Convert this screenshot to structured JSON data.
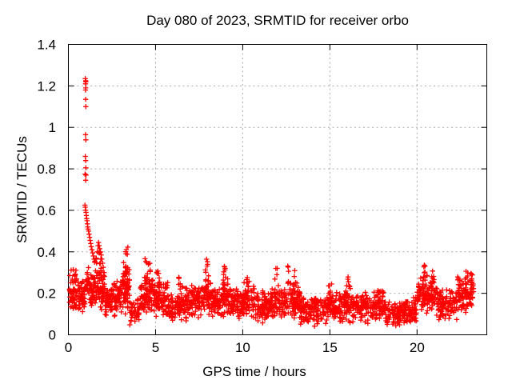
{
  "title": "Day 080 of 2023, SRMTID for receiver orbo",
  "axes": {
    "xlabel": "GPS time / hours",
    "ylabel": "SRMTID / TECUs",
    "xlim": [
      0,
      24
    ],
    "ylim": [
      0,
      1.4
    ],
    "xticks": [
      0,
      5,
      10,
      15,
      20
    ],
    "yticks": [
      0,
      0.2,
      0.4,
      0.6,
      0.8,
      1,
      1.2,
      1.4
    ],
    "grid": true
  },
  "colors": {
    "marker": "#ff0000",
    "grid": "#aaaaaa",
    "axis": "#000000",
    "text": "#000000",
    "background": "#ffffff"
  },
  "chart_data": {
    "type": "scatter",
    "marker": "plus",
    "marker_color": "#ff0000",
    "legend": "none",
    "title": "Day 080 of 2023, SRMTID for receiver orbo",
    "xlabel": "GPS time / hours",
    "ylabel": "SRMTID / TECUs",
    "xlim": [
      0,
      24
    ],
    "ylim": [
      0,
      1.4
    ],
    "xticks": [
      0,
      5,
      10,
      15,
      20
    ],
    "yticks": [
      0,
      0.2,
      0.4,
      0.6,
      0.8,
      1,
      1.2,
      1.4
    ],
    "grid": true,
    "description": "Dense time series of red plus markers, ~30s cadence, hours 0.05-23.25. Baseline band mostly 0.05-0.3 TECUs with a large narrow spike near hour 1 reaching 1.235, a decaying tail to ~0.35 by hour 1.5, and smaller bumps listed in bursts.",
    "seed": 20230080,
    "spike_points": [
      [
        0.97,
        1.235
      ],
      [
        0.99,
        1.225
      ],
      [
        0.98,
        1.21
      ],
      [
        1.0,
        1.22
      ],
      [
        0.99,
        1.19
      ],
      [
        0.98,
        1.18
      ],
      [
        0.99,
        1.135
      ],
      [
        1.0,
        1.1
      ],
      [
        0.98,
        0.965
      ],
      [
        1.0,
        0.94
      ],
      [
        0.97,
        0.86
      ],
      [
        0.99,
        0.84
      ],
      [
        1.0,
        0.805
      ],
      [
        0.96,
        0.775
      ],
      [
        1.01,
        0.77
      ],
      [
        0.99,
        0.745
      ],
      [
        0.95,
        0.625
      ],
      [
        0.97,
        0.615
      ],
      [
        0.99,
        0.6
      ],
      [
        1.01,
        0.59
      ],
      [
        1.03,
        0.575
      ],
      [
        1.05,
        0.56
      ],
      [
        1.07,
        0.55
      ],
      [
        1.09,
        0.535
      ],
      [
        1.11,
        0.52
      ],
      [
        1.13,
        0.51
      ],
      [
        1.16,
        0.5
      ],
      [
        1.19,
        0.485
      ],
      [
        1.22,
        0.47
      ],
      [
        1.25,
        0.455
      ],
      [
        1.28,
        0.44
      ],
      [
        1.31,
        0.425
      ],
      [
        1.35,
        0.41
      ],
      [
        1.39,
        0.395
      ],
      [
        1.43,
        0.38
      ],
      [
        1.47,
        0.365
      ],
      [
        1.51,
        0.35
      ],
      [
        1.6,
        0.37
      ],
      [
        1.65,
        0.4
      ],
      [
        1.7,
        0.43
      ],
      [
        1.73,
        0.445
      ],
      [
        1.76,
        0.43
      ],
      [
        1.8,
        0.415
      ],
      [
        1.84,
        0.4
      ],
      [
        1.88,
        0.385
      ],
      [
        1.92,
        0.365
      ],
      [
        1.96,
        0.345
      ],
      [
        2.0,
        0.325
      ],
      [
        2.05,
        0.3
      ]
    ],
    "baseline_segments_format": "[t_start_h, t_end_h, n_points, y_min, y_max]",
    "baseline_segments": [
      [
        0.05,
        0.5,
        55,
        0.1,
        0.31
      ],
      [
        0.5,
        0.95,
        50,
        0.1,
        0.28
      ],
      [
        0.95,
        1.2,
        25,
        0.13,
        0.33
      ],
      [
        1.2,
        1.6,
        45,
        0.1,
        0.3
      ],
      [
        1.6,
        2.1,
        55,
        0.11,
        0.33
      ],
      [
        2.1,
        2.6,
        50,
        0.08,
        0.24
      ],
      [
        2.6,
        3.1,
        55,
        0.08,
        0.27
      ],
      [
        3.1,
        3.5,
        55,
        0.09,
        0.36
      ],
      [
        3.5,
        4.1,
        42,
        0.04,
        0.18
      ],
      [
        4.1,
        5.0,
        95,
        0.08,
        0.3
      ],
      [
        5.0,
        5.7,
        72,
        0.07,
        0.27
      ],
      [
        5.7,
        6.4,
        65,
        0.05,
        0.21
      ],
      [
        6.4,
        7.2,
        78,
        0.06,
        0.25
      ],
      [
        7.2,
        7.8,
        60,
        0.07,
        0.26
      ],
      [
        7.8,
        8.2,
        42,
        0.08,
        0.3
      ],
      [
        8.2,
        8.8,
        58,
        0.07,
        0.24
      ],
      [
        8.8,
        9.2,
        42,
        0.08,
        0.28
      ],
      [
        9.2,
        10.0,
        80,
        0.06,
        0.24
      ],
      [
        10.0,
        10.7,
        68,
        0.07,
        0.26
      ],
      [
        10.7,
        11.6,
        88,
        0.05,
        0.22
      ],
      [
        11.6,
        12.3,
        68,
        0.06,
        0.26
      ],
      [
        12.3,
        13.3,
        95,
        0.06,
        0.27
      ],
      [
        13.3,
        14.6,
        118,
        0.04,
        0.19
      ],
      [
        14.6,
        15.6,
        92,
        0.05,
        0.21
      ],
      [
        15.6,
        16.6,
        92,
        0.05,
        0.23
      ],
      [
        16.6,
        17.6,
        90,
        0.05,
        0.21
      ],
      [
        17.6,
        18.2,
        56,
        0.05,
        0.22
      ],
      [
        18.2,
        19.3,
        100,
        0.04,
        0.17
      ],
      [
        19.3,
        20.0,
        64,
        0.05,
        0.19
      ],
      [
        20.0,
        21.2,
        112,
        0.08,
        0.3
      ],
      [
        21.2,
        22.3,
        100,
        0.06,
        0.23
      ],
      [
        22.3,
        23.25,
        92,
        0.08,
        0.31
      ]
    ],
    "bursts_format": "[t_center_h, t_halfwidth_h, y_min, y_max, n_points]",
    "bursts": [
      [
        0.3,
        0.15,
        0.22,
        0.32,
        8
      ],
      [
        1.7,
        0.2,
        0.25,
        0.42,
        18
      ],
      [
        3.3,
        0.12,
        0.15,
        0.43,
        22
      ],
      [
        4.55,
        0.18,
        0.18,
        0.37,
        16
      ],
      [
        5.15,
        0.1,
        0.16,
        0.31,
        10
      ],
      [
        6.35,
        0.08,
        0.14,
        0.28,
        8
      ],
      [
        7.95,
        0.1,
        0.16,
        0.37,
        13
      ],
      [
        8.95,
        0.1,
        0.16,
        0.34,
        12
      ],
      [
        10.2,
        0.1,
        0.14,
        0.29,
        9
      ],
      [
        11.9,
        0.08,
        0.14,
        0.33,
        8
      ],
      [
        12.65,
        0.1,
        0.14,
        0.36,
        10
      ],
      [
        13.0,
        0.08,
        0.13,
        0.32,
        8
      ],
      [
        15.0,
        0.1,
        0.12,
        0.26,
        8
      ],
      [
        16.05,
        0.1,
        0.12,
        0.28,
        10
      ],
      [
        17.8,
        0.08,
        0.12,
        0.26,
        8
      ],
      [
        20.45,
        0.15,
        0.14,
        0.34,
        18
      ],
      [
        20.85,
        0.1,
        0.14,
        0.31,
        10
      ],
      [
        22.85,
        0.12,
        0.14,
        0.33,
        14
      ],
      [
        23.1,
        0.08,
        0.13,
        0.3,
        10
      ]
    ]
  }
}
